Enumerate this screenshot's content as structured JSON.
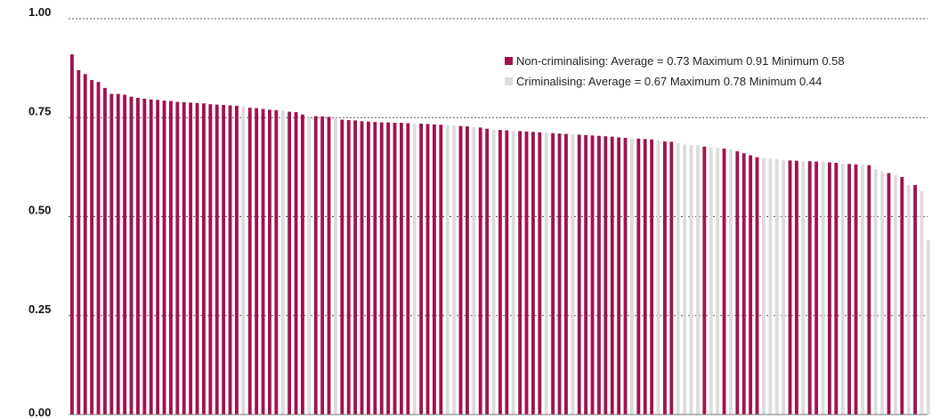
{
  "colors": {
    "non_criminalising": "#a0124f",
    "criminalising": "#dcdcdc"
  },
  "legend": [
    {
      "label": "Non-criminalising: Average = 0.73 Maximum 0.91 Minimum 0.58",
      "series": "non_criminalising"
    },
    {
      "label": "Criminalising: Average = 0.67 Maximum 0.78 Minimum 0.44",
      "series": "criminalising"
    }
  ],
  "chart_data": {
    "type": "bar",
    "title": "",
    "xlabel": "",
    "ylabel": "",
    "ylim": [
      0,
      1
    ],
    "yticks": [
      "0.00",
      "0.25",
      "0.50",
      "0.75",
      "1.00"
    ],
    "grid": true,
    "legend_position": "top-right",
    "series": [
      {
        "name": "Non-criminalising",
        "key": "non_criminalising"
      },
      {
        "name": "Criminalising",
        "key": "criminalising"
      }
    ],
    "bars": [
      {
        "v": 0.91,
        "c": "N"
      },
      {
        "v": 0.87,
        "c": "N"
      },
      {
        "v": 0.86,
        "c": "N"
      },
      {
        "v": 0.845,
        "c": "N"
      },
      {
        "v": 0.84,
        "c": "N"
      },
      {
        "v": 0.825,
        "c": "N"
      },
      {
        "v": 0.81,
        "c": "N"
      },
      {
        "v": 0.81,
        "c": "N"
      },
      {
        "v": 0.808,
        "c": "N"
      },
      {
        "v": 0.803,
        "c": "N"
      },
      {
        "v": 0.8,
        "c": "N"
      },
      {
        "v": 0.798,
        "c": "N"
      },
      {
        "v": 0.796,
        "c": "N"
      },
      {
        "v": 0.795,
        "c": "N"
      },
      {
        "v": 0.793,
        "c": "N"
      },
      {
        "v": 0.792,
        "c": "N"
      },
      {
        "v": 0.79,
        "c": "N"
      },
      {
        "v": 0.789,
        "c": "N"
      },
      {
        "v": 0.788,
        "c": "N"
      },
      {
        "v": 0.787,
        "c": "N"
      },
      {
        "v": 0.786,
        "c": "N"
      },
      {
        "v": 0.784,
        "c": "N"
      },
      {
        "v": 0.783,
        "c": "N"
      },
      {
        "v": 0.782,
        "c": "N"
      },
      {
        "v": 0.781,
        "c": "N"
      },
      {
        "v": 0.78,
        "c": "N"
      },
      {
        "v": 0.779,
        "c": "C"
      },
      {
        "v": 0.775,
        "c": "N"
      },
      {
        "v": 0.774,
        "c": "N"
      },
      {
        "v": 0.772,
        "c": "N"
      },
      {
        "v": 0.77,
        "c": "N"
      },
      {
        "v": 0.769,
        "c": "N"
      },
      {
        "v": 0.768,
        "c": "C"
      },
      {
        "v": 0.765,
        "c": "N"
      },
      {
        "v": 0.764,
        "c": "N"
      },
      {
        "v": 0.758,
        "c": "N"
      },
      {
        "v": 0.754,
        "c": "C"
      },
      {
        "v": 0.754,
        "c": "N"
      },
      {
        "v": 0.753,
        "c": "N"
      },
      {
        "v": 0.752,
        "c": "N"
      },
      {
        "v": 0.75,
        "c": "C"
      },
      {
        "v": 0.745,
        "c": "N"
      },
      {
        "v": 0.744,
        "c": "N"
      },
      {
        "v": 0.743,
        "c": "N"
      },
      {
        "v": 0.741,
        "c": "N"
      },
      {
        "v": 0.74,
        "c": "N"
      },
      {
        "v": 0.739,
        "c": "N"
      },
      {
        "v": 0.738,
        "c": "N"
      },
      {
        "v": 0.738,
        "c": "N"
      },
      {
        "v": 0.737,
        "c": "N"
      },
      {
        "v": 0.737,
        "c": "N"
      },
      {
        "v": 0.736,
        "c": "N"
      },
      {
        "v": 0.735,
        "c": "C"
      },
      {
        "v": 0.735,
        "c": "N"
      },
      {
        "v": 0.734,
        "c": "N"
      },
      {
        "v": 0.733,
        "c": "N"
      },
      {
        "v": 0.732,
        "c": "N"
      },
      {
        "v": 0.731,
        "c": "C"
      },
      {
        "v": 0.73,
        "c": "C"
      },
      {
        "v": 0.729,
        "c": "N"
      },
      {
        "v": 0.728,
        "c": "N"
      },
      {
        "v": 0.726,
        "c": "C"
      },
      {
        "v": 0.725,
        "c": "N"
      },
      {
        "v": 0.722,
        "c": "N"
      },
      {
        "v": 0.72,
        "c": "C"
      },
      {
        "v": 0.719,
        "c": "N"
      },
      {
        "v": 0.718,
        "c": "N"
      },
      {
        "v": 0.716,
        "c": "C"
      },
      {
        "v": 0.716,
        "c": "N"
      },
      {
        "v": 0.715,
        "c": "N"
      },
      {
        "v": 0.714,
        "c": "N"
      },
      {
        "v": 0.713,
        "c": "N"
      },
      {
        "v": 0.712,
        "c": "C"
      },
      {
        "v": 0.711,
        "c": "N"
      },
      {
        "v": 0.71,
        "c": "N"
      },
      {
        "v": 0.709,
        "c": "N"
      },
      {
        "v": 0.708,
        "c": "C"
      },
      {
        "v": 0.707,
        "c": "N"
      },
      {
        "v": 0.706,
        "c": "N"
      },
      {
        "v": 0.705,
        "c": "N"
      },
      {
        "v": 0.704,
        "c": "N"
      },
      {
        "v": 0.703,
        "c": "N"
      },
      {
        "v": 0.702,
        "c": "N"
      },
      {
        "v": 0.7,
        "c": "N"
      },
      {
        "v": 0.699,
        "c": "N"
      },
      {
        "v": 0.698,
        "c": "C"
      },
      {
        "v": 0.697,
        "c": "N"
      },
      {
        "v": 0.696,
        "c": "N"
      },
      {
        "v": 0.695,
        "c": "N"
      },
      {
        "v": 0.692,
        "c": "C"
      },
      {
        "v": 0.69,
        "c": "N"
      },
      {
        "v": 0.689,
        "c": "N"
      },
      {
        "v": 0.685,
        "c": "C"
      },
      {
        "v": 0.682,
        "c": "C"
      },
      {
        "v": 0.681,
        "c": "C"
      },
      {
        "v": 0.68,
        "c": "C"
      },
      {
        "v": 0.677,
        "c": "N"
      },
      {
        "v": 0.675,
        "c": "C"
      },
      {
        "v": 0.674,
        "c": "C"
      },
      {
        "v": 0.672,
        "c": "N"
      },
      {
        "v": 0.67,
        "c": "C"
      },
      {
        "v": 0.665,
        "c": "N"
      },
      {
        "v": 0.66,
        "c": "N"
      },
      {
        "v": 0.655,
        "c": "N"
      },
      {
        "v": 0.65,
        "c": "N"
      },
      {
        "v": 0.648,
        "c": "C"
      },
      {
        "v": 0.647,
        "c": "C"
      },
      {
        "v": 0.646,
        "c": "C"
      },
      {
        "v": 0.642,
        "c": "C"
      },
      {
        "v": 0.642,
        "c": "N"
      },
      {
        "v": 0.641,
        "c": "N"
      },
      {
        "v": 0.64,
        "c": "C"
      },
      {
        "v": 0.64,
        "c": "N"
      },
      {
        "v": 0.639,
        "c": "N"
      },
      {
        "v": 0.638,
        "c": "C"
      },
      {
        "v": 0.637,
        "c": "N"
      },
      {
        "v": 0.636,
        "c": "N"
      },
      {
        "v": 0.634,
        "c": "C"
      },
      {
        "v": 0.633,
        "c": "N"
      },
      {
        "v": 0.632,
        "c": "N"
      },
      {
        "v": 0.631,
        "c": "C"
      },
      {
        "v": 0.63,
        "c": "N"
      },
      {
        "v": 0.62,
        "c": "C"
      },
      {
        "v": 0.614,
        "c": "C"
      },
      {
        "v": 0.61,
        "c": "N"
      },
      {
        "v": 0.605,
        "c": "C"
      },
      {
        "v": 0.6,
        "c": "N"
      },
      {
        "v": 0.58,
        "c": "C"
      },
      {
        "v": 0.58,
        "c": "N"
      },
      {
        "v": 0.565,
        "c": "C"
      },
      {
        "v": 0.44,
        "c": "C"
      }
    ]
  }
}
